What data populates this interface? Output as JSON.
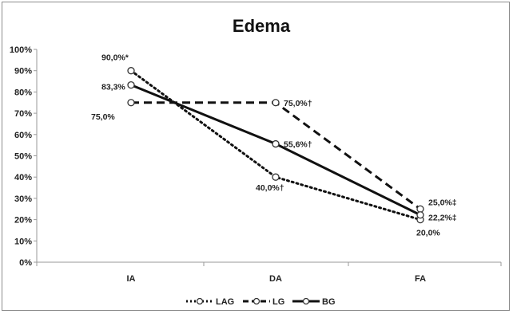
{
  "chart_data": {
    "type": "line",
    "title": "Edema",
    "categories": [
      "IA",
      "DA",
      "FA"
    ],
    "y_ticks": [
      "0%",
      "10%",
      "20%",
      "30%",
      "40%",
      "50%",
      "60%",
      "70%",
      "80%",
      "90%",
      "100%"
    ],
    "ylim": [
      0,
      100
    ],
    "grid": false,
    "legend_position": "bottom",
    "series": [
      {
        "name": "LAG",
        "style": "dotted",
        "values": [
          90.0,
          40.0,
          20.0
        ],
        "labels": [
          "90,0%*",
          "40,0%†",
          "20,0%"
        ]
      },
      {
        "name": "LG",
        "style": "dashed",
        "values": [
          75.0,
          75.0,
          25.0
        ],
        "labels": [
          "75,0%",
          "75,0%†",
          "25,0%‡"
        ]
      },
      {
        "name": "BG",
        "style": "solid",
        "values": [
          83.3,
          55.6,
          22.2
        ],
        "labels": [
          "83,3%",
          "55,6%†",
          "22,2%‡"
        ]
      }
    ]
  }
}
